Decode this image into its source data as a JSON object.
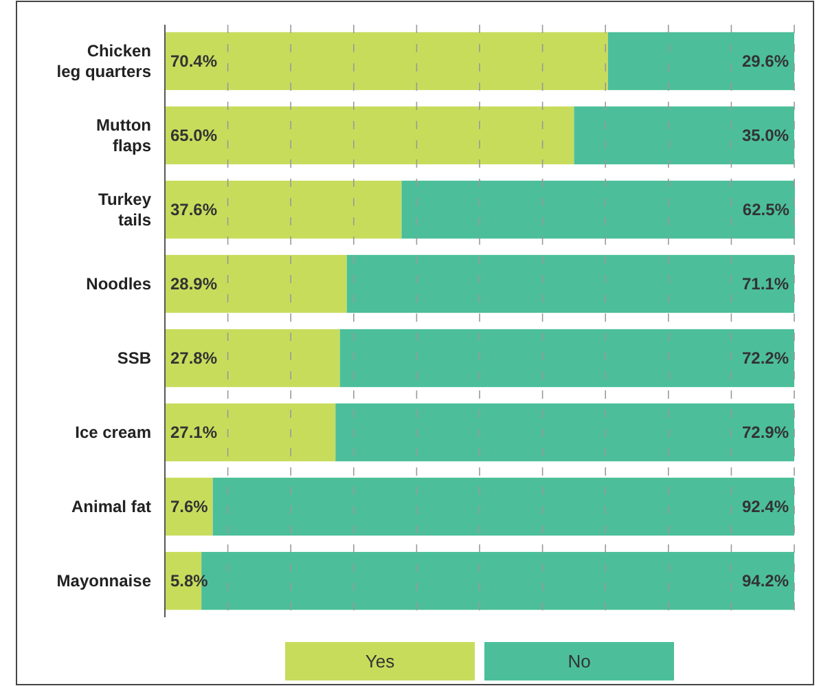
{
  "chart_data": {
    "type": "bar",
    "orientation": "horizontal",
    "stacked": true,
    "categories": [
      "Chicken leg quarters",
      "Mutton flaps",
      "Turkey tails",
      "Noodles",
      "SSB",
      "Ice cream",
      "Animal fat",
      "Mayonnaise"
    ],
    "series": [
      {
        "name": "Yes",
        "color": "#c8dc5c",
        "values": [
          70.4,
          65.0,
          37.6,
          28.9,
          27.8,
          27.1,
          7.6,
          5.8
        ],
        "value_labels": [
          "70.4%",
          "65.0%",
          "37.6%",
          "28.9%",
          "27.8%",
          "27.1%",
          "7.6%",
          "5.8%"
        ]
      },
      {
        "name": "No",
        "color": "#4cbf9a",
        "values": [
          29.6,
          35.0,
          62.5,
          71.1,
          72.2,
          72.9,
          92.4,
          94.2
        ],
        "value_labels": [
          "29.6%",
          "35.0%",
          "62.5%",
          "71.1%",
          "72.2%",
          "72.9%",
          "92.4%",
          "94.2%"
        ]
      }
    ],
    "xlim": [
      0,
      100
    ],
    "xticks": [
      {
        "value": 0,
        "label": null
      },
      {
        "value": 10,
        "label": null
      },
      {
        "value": 20,
        "label": null
      },
      {
        "value": 30,
        "label": null
      },
      {
        "value": 40,
        "label": null
      },
      {
        "value": 50,
        "label": null
      },
      {
        "value": 60,
        "label": null
      },
      {
        "value": 70,
        "label": null
      },
      {
        "value": 80,
        "label": null
      },
      {
        "value": 90,
        "label": null
      },
      {
        "value": 100,
        "label": null
      }
    ],
    "grid": "x",
    "legend": "bottom",
    "tick_labels": "y"
  }
}
